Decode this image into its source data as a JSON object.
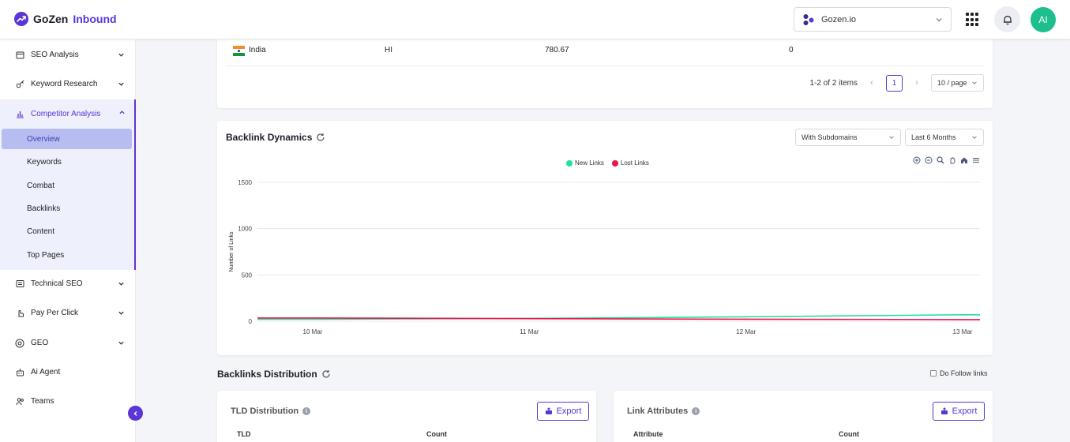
{
  "brand": {
    "name": "GoZen",
    "product": "Inbound"
  },
  "header": {
    "workspace": "Gozen.io",
    "avatar_initials": "AI"
  },
  "sidebar": {
    "items": [
      {
        "label": "SEO Analysis"
      },
      {
        "label": "Keyword Research"
      },
      {
        "label": "Competitor Analysis"
      },
      {
        "label": "Technical SEO"
      },
      {
        "label": "Pay Per Click"
      },
      {
        "label": "GEO"
      },
      {
        "label": "Ai Agent"
      },
      {
        "label": "Teams"
      }
    ],
    "competitor_sub": [
      {
        "label": "Overview"
      },
      {
        "label": "Keywords"
      },
      {
        "label": "Combat"
      },
      {
        "label": "Backlinks"
      },
      {
        "label": "Content"
      },
      {
        "label": "Top Pages"
      }
    ]
  },
  "country_table": {
    "row": {
      "country": "India",
      "language": "HI",
      "value": "780.67",
      "count": "0"
    },
    "pagination": {
      "summary": "1-2 of 2 items",
      "page": "1",
      "page_size": "10 / page"
    }
  },
  "backlink_dynamics": {
    "title": "Backlink Dynamics",
    "subdomain_select": "With Subdomains",
    "period_select": "Last 6 Months"
  },
  "chart_data": {
    "type": "line",
    "x": [
      "10 Mar",
      "11 Mar",
      "12 Mar",
      "13 Mar"
    ],
    "series": [
      {
        "name": "New Links",
        "color": "#1fe0a0",
        "values": [
          22,
          30,
          48,
          70
        ]
      },
      {
        "name": "Lost Links",
        "color": "#f0124e",
        "values": [
          35,
          28,
          22,
          18
        ]
      }
    ],
    "ylabel": "Number of Links",
    "yticks": [
      "1500",
      "1000",
      "500",
      "0"
    ],
    "ylim": [
      0,
      1500
    ],
    "grid": true,
    "legend": "top-center"
  },
  "distribution": {
    "title": "Backlinks Distribution",
    "dofollow_label": "Do Follow links",
    "tld_card": {
      "title": "TLD Distribution",
      "export": "Export",
      "col1": "TLD",
      "col2": "Count"
    },
    "attr_card": {
      "title": "Link Attributes",
      "export": "Export",
      "col1": "Attribute",
      "col2": "Count"
    }
  },
  "colors": {
    "accent": "#5b35d5",
    "avatar": "#1dbf8e"
  }
}
